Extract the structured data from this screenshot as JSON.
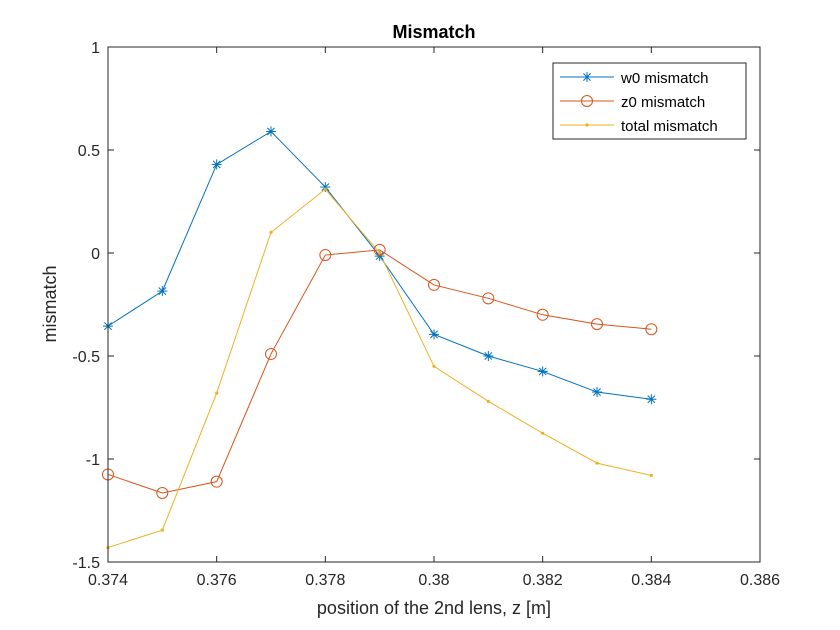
{
  "chart_data": {
    "type": "line",
    "title": "Mismatch",
    "xlabel": "position of the 2nd lens, z [m]",
    "ylabel": "mismatch",
    "xlim": [
      0.374,
      0.386
    ],
    "ylim": [
      -1.5,
      1
    ],
    "xticks": [
      "0.374",
      "0.376",
      "0.378",
      "0.38",
      "0.382",
      "0.384",
      "0.386"
    ],
    "yticks": [
      "-1.5",
      "-1",
      "-0.5",
      "0",
      "0.5",
      "1"
    ],
    "grid": false,
    "legend_position": "top-right",
    "x": [
      0.374,
      0.375,
      0.376,
      0.377,
      0.378,
      0.379,
      0.38,
      0.381,
      0.382,
      0.383,
      0.384
    ],
    "series": [
      {
        "name": "w0 mismatch",
        "color": "#0072BD",
        "marker": "asterisk",
        "values": [
          -0.355,
          -0.185,
          0.43,
          0.59,
          0.32,
          -0.015,
          -0.395,
          -0.5,
          -0.575,
          -0.675,
          -0.71
        ]
      },
      {
        "name": "z0 mismatch",
        "color": "#D95319",
        "marker": "circle",
        "values": [
          -1.075,
          -1.165,
          -1.11,
          -0.49,
          -0.01,
          0.015,
          -0.155,
          -0.22,
          -0.3,
          -0.345,
          -0.37
        ]
      },
      {
        "name": "total mismatch",
        "color": "#EDB120",
        "marker": "point",
        "values": [
          -1.43,
          -1.345,
          -0.68,
          0.1,
          0.31,
          0.0,
          -0.55,
          -0.72,
          -0.875,
          -1.02,
          -1.08
        ]
      }
    ]
  }
}
